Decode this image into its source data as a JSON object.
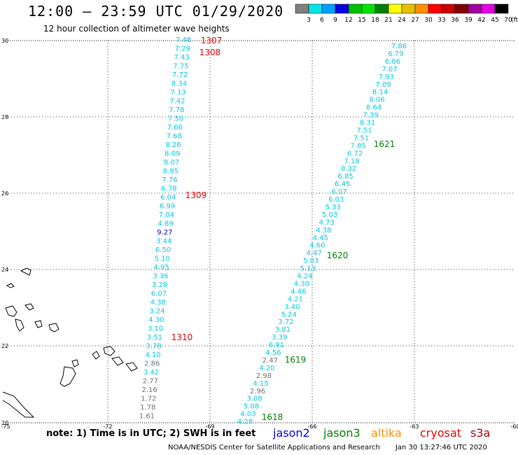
{
  "header": {
    "title": "12:00 – 23:59 UTC 01/29/2020",
    "subtitle": "12 hour collection of altimeter wave heights"
  },
  "scale": {
    "labels": [
      "3",
      "6",
      "9",
      "12",
      "15",
      "18",
      "21",
      "24",
      "27",
      "30",
      "33",
      "36",
      "39",
      "42",
      "45",
      "70"
    ],
    "unit": "(ft)",
    "colors": [
      "#808080",
      "#00e6e6",
      "#00a0ff",
      "#0000e6",
      "#00c000",
      "#00e600",
      "#008000",
      "#ffff00",
      "#e6c000",
      "#ff9000",
      "#ff0000",
      "#c80000",
      "#800000",
      "#a000a0",
      "#e600e6",
      "#000000"
    ]
  },
  "axes": {
    "lat_ticks": [
      "30",
      "28",
      "26",
      "24",
      "22",
      "20"
    ],
    "lon_ticks": [
      "-75",
      "-72",
      "-69",
      "-66",
      "-63",
      "-60"
    ]
  },
  "left_track": {
    "values": [
      {
        "v": "7.48",
        "c": "#00c8e6"
      },
      {
        "v": "7.29",
        "c": "#00c8e6"
      },
      {
        "v": "7.43",
        "c": "#00c8e6"
      },
      {
        "v": "7.75",
        "c": "#00c8e6"
      },
      {
        "v": "7.72",
        "c": "#00c8e6"
      },
      {
        "v": "8.34",
        "c": "#00c8e6"
      },
      {
        "v": "7.13",
        "c": "#00c8e6"
      },
      {
        "v": "7.42",
        "c": "#00c8e6"
      },
      {
        "v": "7.78",
        "c": "#00c8e6"
      },
      {
        "v": "7.50",
        "c": "#00c8e6"
      },
      {
        "v": "7.66",
        "c": "#00c8e6"
      },
      {
        "v": "7.68",
        "c": "#00c8e6"
      },
      {
        "v": "8.26",
        "c": "#00c8e6"
      },
      {
        "v": "8.09",
        "c": "#00c8e6"
      },
      {
        "v": "8.07",
        "c": "#00c8e6"
      },
      {
        "v": "8.95",
        "c": "#00c8e6"
      },
      {
        "v": "7.76",
        "c": "#00c8e6"
      },
      {
        "v": "6.78",
        "c": "#00c8e6"
      },
      {
        "v": "6.04",
        "c": "#00c8e6"
      },
      {
        "v": "6.99",
        "c": "#00c8e6"
      },
      {
        "v": "7.04",
        "c": "#00c8e6"
      },
      {
        "v": "4.89",
        "c": "#00c8e6"
      },
      {
        "v": "9.27",
        "c": "#0000c8"
      },
      {
        "v": "3.44",
        "c": "#00c8e6"
      },
      {
        "v": "6.50",
        "c": "#00c8e6"
      },
      {
        "v": "5.10",
        "c": "#00c8e6"
      },
      {
        "v": "4.95",
        "c": "#00c8e6"
      },
      {
        "v": "3.36",
        "c": "#00c8e6"
      },
      {
        "v": "3.28",
        "c": "#00c8e6"
      },
      {
        "v": "6.07",
        "c": "#00c8e6"
      },
      {
        "v": "4.38",
        "c": "#00c8e6"
      },
      {
        "v": "3.24",
        "c": "#00c8e6"
      },
      {
        "v": "4.30",
        "c": "#00c8e6"
      },
      {
        "v": "3.10",
        "c": "#00c8e6"
      },
      {
        "v": "3.51",
        "c": "#00c8e6"
      },
      {
        "v": "3.78",
        "c": "#00c8e6"
      },
      {
        "v": "4.10",
        "c": "#00c8e6"
      },
      {
        "v": "2.86",
        "c": "#707070"
      },
      {
        "v": "3.42",
        "c": "#00c8e6"
      },
      {
        "v": "2.77",
        "c": "#707070"
      },
      {
        "v": "2.16",
        "c": "#707070"
      },
      {
        "v": "1.72",
        "c": "#707070"
      },
      {
        "v": "1.78",
        "c": "#707070"
      },
      {
        "v": "1.61",
        "c": "#707070"
      }
    ],
    "time_labels": [
      "1307",
      "1308",
      "1309",
      "1310"
    ]
  },
  "right_track": {
    "values": [
      {
        "v": "7.86",
        "c": "#00c8e6"
      },
      {
        "v": "6.79",
        "c": "#00c8e6"
      },
      {
        "v": "6.86",
        "c": "#00c8e6"
      },
      {
        "v": "7.07",
        "c": "#00c8e6"
      },
      {
        "v": "7.93",
        "c": "#00c8e6"
      },
      {
        "v": "7.09",
        "c": "#00c8e6"
      },
      {
        "v": "8.14",
        "c": "#00c8e6"
      },
      {
        "v": "8.06",
        "c": "#00c8e6"
      },
      {
        "v": "8.64",
        "c": "#00c8e6"
      },
      {
        "v": "7.39",
        "c": "#00c8e6"
      },
      {
        "v": "8.31",
        "c": "#00c8e6"
      },
      {
        "v": "7.51",
        "c": "#00c8e6"
      },
      {
        "v": "7.51",
        "c": "#00c8e6"
      },
      {
        "v": "7.85",
        "c": "#00c8e6"
      },
      {
        "v": "6.72",
        "c": "#00c8e6"
      },
      {
        "v": "7.18",
        "c": "#00c8e6"
      },
      {
        "v": "8.32",
        "c": "#00c8e6"
      },
      {
        "v": "6.85",
        "c": "#00c8e6"
      },
      {
        "v": "6.45",
        "c": "#00c8e6"
      },
      {
        "v": "6.07",
        "c": "#00c8e6"
      },
      {
        "v": "6.03",
        "c": "#00c8e6"
      },
      {
        "v": "5.33",
        "c": "#00c8e6"
      },
      {
        "v": "5.03",
        "c": "#00c8e6"
      },
      {
        "v": "4.73",
        "c": "#00c8e6"
      },
      {
        "v": "4.38",
        "c": "#00c8e6"
      },
      {
        "v": "4.45",
        "c": "#00c8e6"
      },
      {
        "v": "4.60",
        "c": "#00c8e6"
      },
      {
        "v": "4.47",
        "c": "#00c8e6"
      },
      {
        "v": "5.03",
        "c": "#00c8e6"
      },
      {
        "v": "5.13",
        "c": "#00c8e6"
      },
      {
        "v": "4.24",
        "c": "#00c8e6"
      },
      {
        "v": "4.30",
        "c": "#00c8e6"
      },
      {
        "v": "4.46",
        "c": "#00c8e6"
      },
      {
        "v": "4.21",
        "c": "#00c8e6"
      },
      {
        "v": "3.40",
        "c": "#00c8e6"
      },
      {
        "v": "5.24",
        "c": "#00c8e6"
      },
      {
        "v": "3.72",
        "c": "#00c8e6"
      },
      {
        "v": "3.81",
        "c": "#00c8e6"
      },
      {
        "v": "3.39",
        "c": "#00c8e6"
      },
      {
        "v": "6.91",
        "c": "#00c8e6"
      },
      {
        "v": "4.56",
        "c": "#00c8e6"
      },
      {
        "v": "2.47",
        "c": "#707070"
      },
      {
        "v": "4.20",
        "c": "#00c8e6"
      },
      {
        "v": "2.98",
        "c": "#707070"
      },
      {
        "v": "4.15",
        "c": "#00c8e6"
      },
      {
        "v": "2.96",
        "c": "#707070"
      },
      {
        "v": "3.08",
        "c": "#00c8e6"
      },
      {
        "v": "5.08",
        "c": "#00c8e6"
      },
      {
        "v": "4.03",
        "c": "#00c8e6"
      },
      {
        "v": "4.28",
        "c": "#00c8e6"
      }
    ],
    "time_labels": [
      "1621",
      "1620",
      "1619",
      "1618"
    ]
  },
  "time_label_colors": {
    "left": "#e60000",
    "right": "#008000"
  },
  "footer": {
    "note": "note: 1) Time is in UTC; 2) SWH is in feet",
    "satellites": [
      {
        "name": "jason2",
        "color": "#0000e6"
      },
      {
        "name": "jason3",
        "color": "#008000"
      },
      {
        "name": "altika",
        "color": "#ff9000"
      },
      {
        "name": "cryosat",
        "color": "#e60000"
      },
      {
        "name": "s3a",
        "color": "#a00000"
      }
    ],
    "credit": "NOAA/NESDIS Center for Satellite Applications and Research",
    "timestamp": "Jan 30 13:27:46 UTC 2020"
  }
}
